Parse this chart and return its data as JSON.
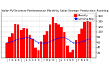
{
  "title": "Solar PV/Inverter Performance Monthly Solar Energy Production Running Average",
  "bar_values": [
    58,
    82,
    95,
    130,
    128,
    108,
    115,
    112,
    90,
    72,
    38,
    28,
    62,
    88,
    102,
    128,
    158,
    132,
    128,
    118,
    98,
    48,
    22,
    32,
    68,
    92,
    112,
    138,
    152,
    138
  ],
  "running_avg": [
    58,
    60,
    62,
    68,
    72,
    74,
    76,
    78,
    76,
    73,
    65,
    58,
    57,
    57,
    58,
    62,
    68,
    72,
    76,
    78,
    78,
    73,
    65,
    58,
    57,
    58,
    62,
    66,
    70,
    74
  ],
  "bar_color": "#ff0000",
  "avg_color": "#0000ff",
  "bg_color": "#ffffff",
  "grid_color": "#aaaaaa",
  "ylim": [
    0,
    175
  ],
  "ytick_values": [
    20,
    40,
    60,
    80,
    100,
    120,
    140,
    160
  ],
  "n_bars": 30,
  "title_fontsize": 3.2,
  "legend_fontsize": 2.8,
  "tick_fontsize": 3.0
}
